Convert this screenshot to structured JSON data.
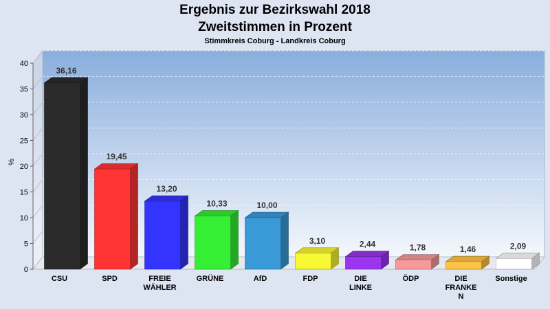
{
  "chart_data": {
    "type": "bar",
    "title": "Ergebnis zur Bezirkswahl 2018",
    "subtitle": "Zweitstimmen in Prozent",
    "subtitle2": "Stimmkreis Coburg - Landkreis Coburg",
    "ylabel": "%",
    "xlabel": "",
    "ylim": [
      0,
      40
    ],
    "yticks": [
      "0",
      "5",
      "10",
      "15",
      "20",
      "25",
      "30",
      "35",
      "40"
    ],
    "grid": true,
    "categories": [
      [
        "CSU"
      ],
      [
        "SPD"
      ],
      [
        "FREIE",
        "WÄHLER"
      ],
      [
        "GRÜNE"
      ],
      [
        "AfD"
      ],
      [
        "FDP"
      ],
      [
        "DIE",
        "LINKE"
      ],
      [
        "ÖDP"
      ],
      [
        "DIE",
        "FRANKE",
        "N"
      ],
      [
        "Sonstige"
      ]
    ],
    "values": [
      36.16,
      19.45,
      13.2,
      10.33,
      10.0,
      3.1,
      2.44,
      1.78,
      1.46,
      2.09
    ],
    "value_labels": [
      "36,16",
      "19,45",
      "13,20",
      "10,33",
      "10,00",
      "3,10",
      "2,44",
      "1,78",
      "1,46",
      "2,09"
    ],
    "colors": [
      "#2b2b2b",
      "#ff3434",
      "#3434ff",
      "#34ef34",
      "#3a9ad8",
      "#f8f834",
      "#9a34f0",
      "#f79a9a",
      "#ffc445",
      "#ffffff"
    ]
  }
}
